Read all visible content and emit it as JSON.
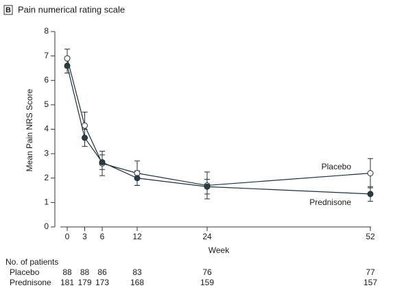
{
  "chart_data": {
    "type": "line",
    "panel_label": "B",
    "title": "Pain numerical rating scale",
    "x_label": "Week",
    "y_label": "Mean Pain NRS Score",
    "x": [
      0,
      3,
      6,
      12,
      24,
      52
    ],
    "xlim": [
      0,
      52
    ],
    "xticks": [
      0,
      3,
      6,
      12,
      24,
      52
    ],
    "ylim": [
      0,
      8
    ],
    "yticks": [
      0,
      1,
      2,
      3,
      4,
      5,
      6,
      7,
      8
    ],
    "at_risk_title": "No. of patients",
    "series": [
      {
        "name": "Placebo",
        "color": "#1f2f36",
        "marker_fill": "#ffffff",
        "values": [
          6.9,
          4.15,
          2.6,
          2.2,
          1.7,
          2.2
        ],
        "errors": [
          0.38,
          0.55,
          0.5,
          0.5,
          0.55,
          0.6
        ],
        "at_risk": [
          88,
          88,
          86,
          83,
          76,
          77
        ]
      },
      {
        "name": "Prednisone",
        "color": "#1f2f36",
        "marker_fill": "#2a3d42",
        "values": [
          6.6,
          3.65,
          2.65,
          2.0,
          1.65,
          1.35
        ],
        "errors": [
          0.3,
          0.35,
          0.3,
          0.3,
          0.3,
          0.3
        ],
        "at_risk": [
          181,
          179,
          173,
          168,
          159,
          157
        ]
      }
    ]
  }
}
